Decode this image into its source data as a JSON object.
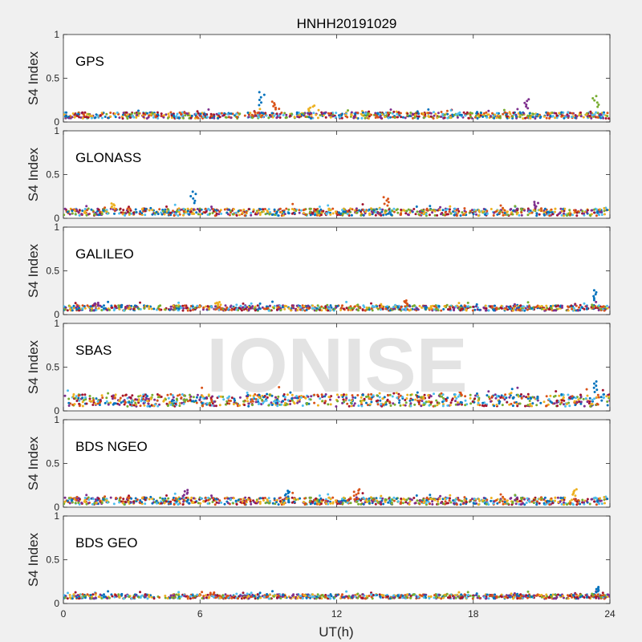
{
  "chart_data": {
    "type": "scatter",
    "title": "HNHH20191029",
    "xlabel": "UT(h)",
    "ylabel": "S4 Index",
    "xlim": [
      0,
      24
    ],
    "ylim": [
      0,
      1
    ],
    "xticks": [
      "0",
      "6",
      "12",
      "18",
      "24"
    ],
    "yticks": [
      "0",
      "0.5",
      "1"
    ],
    "watermark": "IONISE",
    "series_colors": [
      "#0072bd",
      "#d95319",
      "#edb120",
      "#7e2f8e",
      "#77ac30",
      "#4dbeee",
      "#a2142f"
    ],
    "panels": [
      {
        "label": "GPS",
        "baseline": 0.075,
        "spread": 0.035,
        "peaks": [
          [
            8.7,
            0.37
          ],
          [
            9.3,
            0.25
          ],
          [
            10.9,
            0.2
          ],
          [
            20.3,
            0.28
          ],
          [
            23.4,
            0.32
          ]
        ]
      },
      {
        "label": "GLONASS",
        "baseline": 0.07,
        "spread": 0.04,
        "peaks": [
          [
            5.7,
            0.33
          ],
          [
            14.2,
            0.26
          ],
          [
            2.2,
            0.18
          ],
          [
            20.7,
            0.2
          ]
        ]
      },
      {
        "label": "GALILEO",
        "baseline": 0.075,
        "spread": 0.03,
        "peaks": [
          [
            23.3,
            0.3
          ],
          [
            15.1,
            0.17
          ],
          [
            6.8,
            0.15
          ],
          [
            1.4,
            0.14
          ]
        ]
      },
      {
        "label": "SBAS",
        "baseline": 0.12,
        "spread": 0.07,
        "peaks": [
          [
            23.4,
            0.36
          ],
          [
            17.5,
            0.24
          ]
        ]
      },
      {
        "label": "BDS NGEO",
        "baseline": 0.07,
        "spread": 0.04,
        "peaks": [
          [
            9.8,
            0.2
          ],
          [
            12.9,
            0.22
          ],
          [
            22.5,
            0.22
          ],
          [
            5.4,
            0.21
          ]
        ]
      },
      {
        "label": "BDS GEO",
        "baseline": 0.08,
        "spread": 0.025,
        "peaks": [
          [
            23.4,
            0.2
          ],
          [
            6.5,
            0.13
          ]
        ]
      }
    ]
  }
}
